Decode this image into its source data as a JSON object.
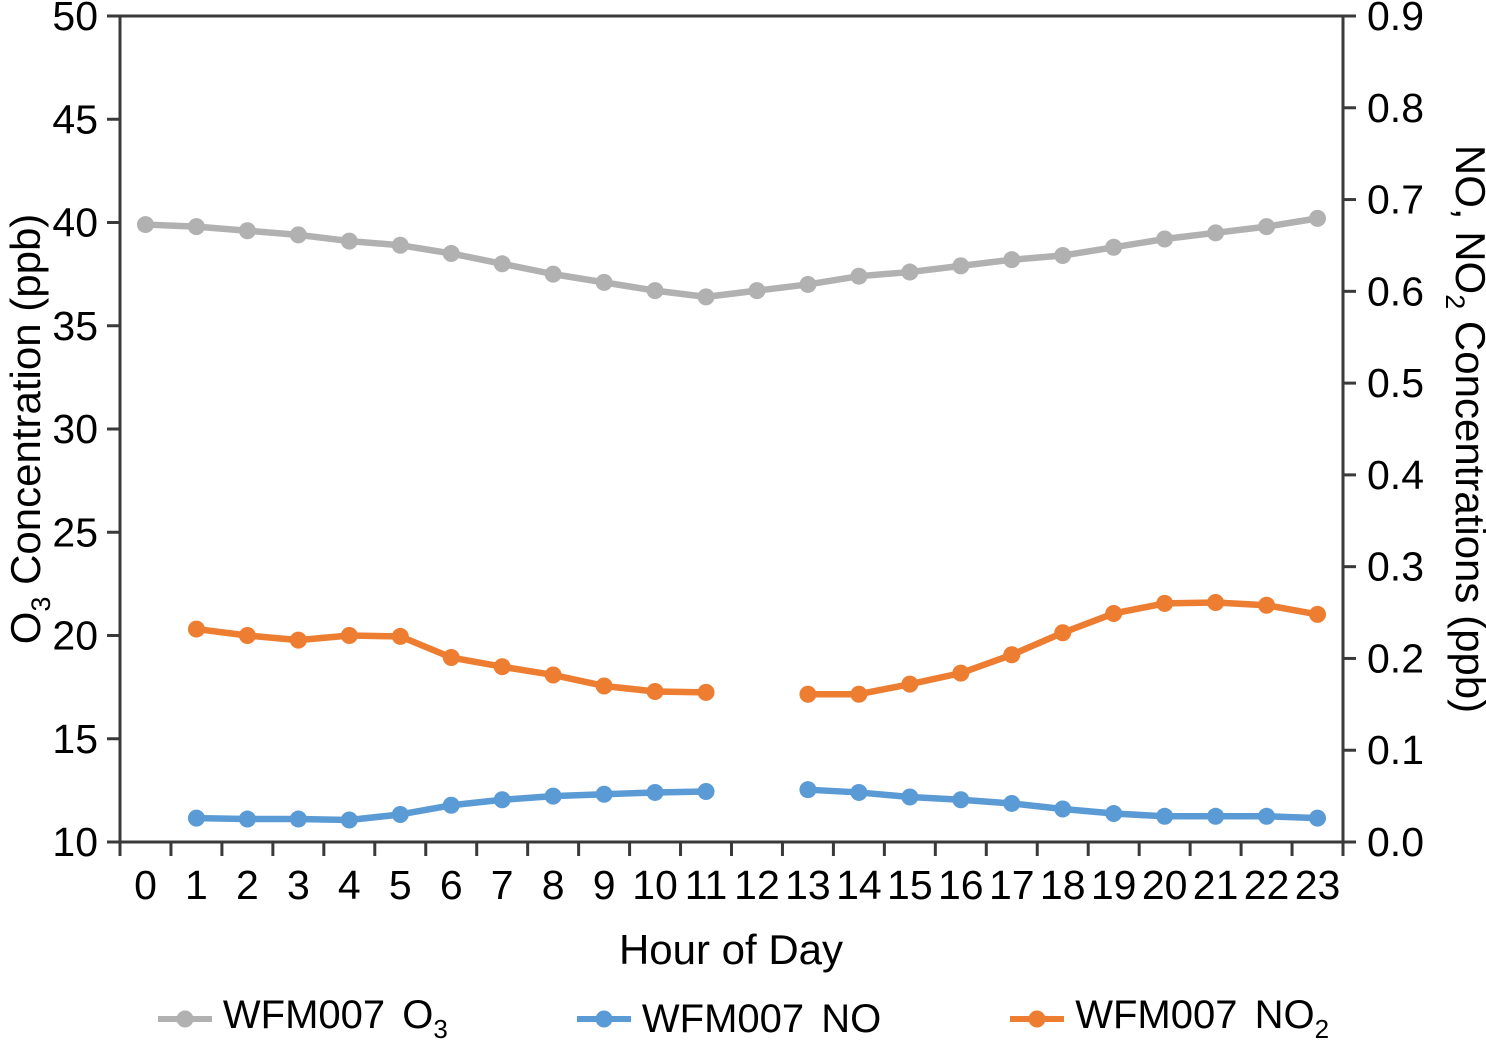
{
  "chart_data": {
    "type": "line",
    "title": "",
    "xlabel": "Hour of Day",
    "background": "#ffffff",
    "axis_color": "#3a3a3a",
    "text_color": "#000000",
    "grid": false,
    "legend_position": "bottom",
    "x": [
      0,
      1,
      2,
      3,
      4,
      5,
      6,
      7,
      8,
      9,
      10,
      11,
      12,
      13,
      14,
      15,
      16,
      17,
      18,
      19,
      20,
      21,
      22,
      23
    ],
    "x_tick_labels": [
      "0",
      "1",
      "2",
      "3",
      "4",
      "5",
      "6",
      "7",
      "8",
      "9",
      "10",
      "11",
      "12",
      "13",
      "14",
      "15",
      "16",
      "17",
      "18",
      "19",
      "20",
      "21",
      "22",
      "23"
    ],
    "left_axis": {
      "label": "O3 Concentration (ppb)",
      "label_parts": [
        {
          "t": "O"
        },
        {
          "t": "3",
          "sub": true
        },
        {
          "t": " Concentration (ppb)"
        }
      ],
      "range": [
        10,
        50
      ],
      "tick_values": [
        50,
        45,
        40,
        35,
        30,
        25,
        20,
        15,
        10
      ],
      "tick_labels": [
        "50",
        "45",
        "40",
        "35",
        "30",
        "25",
        "20",
        "15",
        "10"
      ]
    },
    "right_axis": {
      "label": "NO, NO2 Concentrations (ppb)",
      "label_parts": [
        {
          "t": "NO, NO"
        },
        {
          "t": "2",
          "sub": true
        },
        {
          "t": " Concentrations (ppb)"
        }
      ],
      "range": [
        0.0,
        0.9
      ],
      "tick_values": [
        0.9,
        0.8,
        0.7,
        0.6,
        0.5,
        0.4,
        0.3,
        0.2,
        0.1,
        0.0
      ],
      "tick_labels": [
        "0.9",
        "0.8",
        "0.7",
        "0.6",
        "0.5",
        "0.4",
        "0.3",
        "0.2",
        "0.1",
        "0.0"
      ]
    },
    "series": [
      {
        "id": "o3",
        "name": "WFM007 O3",
        "label_parts": [
          {
            "t": "WFM007 O"
          },
          {
            "t": "3",
            "sub": true
          }
        ],
        "axis": "left",
        "color": "#b1b1b1",
        "values": [
          39.9,
          39.8,
          39.6,
          39.4,
          39.1,
          38.9,
          38.5,
          38.0,
          37.5,
          37.1,
          36.7,
          36.4,
          36.7,
          37.0,
          37.4,
          37.6,
          37.9,
          38.2,
          38.4,
          38.8,
          39.2,
          39.5,
          39.8,
          40.2
        ]
      },
      {
        "id": "no",
        "name": "WFM007 NO",
        "label_parts": [
          {
            "t": "WFM007 NO"
          }
        ],
        "axis": "right",
        "color": "#5b9bd5",
        "values": [
          null,
          0.026,
          0.025,
          0.025,
          0.024,
          0.03,
          0.04,
          0.046,
          0.05,
          0.052,
          0.054,
          0.055,
          null,
          0.057,
          0.054,
          0.049,
          0.046,
          0.042,
          0.036,
          0.031,
          0.028,
          0.028,
          0.028,
          0.026
        ]
      },
      {
        "id": "no2",
        "name": "WFM007 NO2",
        "label_parts": [
          {
            "t": "WFM007 NO"
          },
          {
            "t": "2",
            "sub": true
          }
        ],
        "axis": "right",
        "color": "#ed7d31",
        "values": [
          null,
          0.232,
          0.225,
          0.22,
          0.225,
          0.224,
          0.201,
          0.191,
          0.182,
          0.17,
          0.164,
          0.163,
          null,
          0.161,
          0.161,
          0.172,
          0.184,
          0.204,
          0.228,
          0.249,
          0.26,
          0.261,
          0.258,
          0.248
        ]
      }
    ]
  }
}
